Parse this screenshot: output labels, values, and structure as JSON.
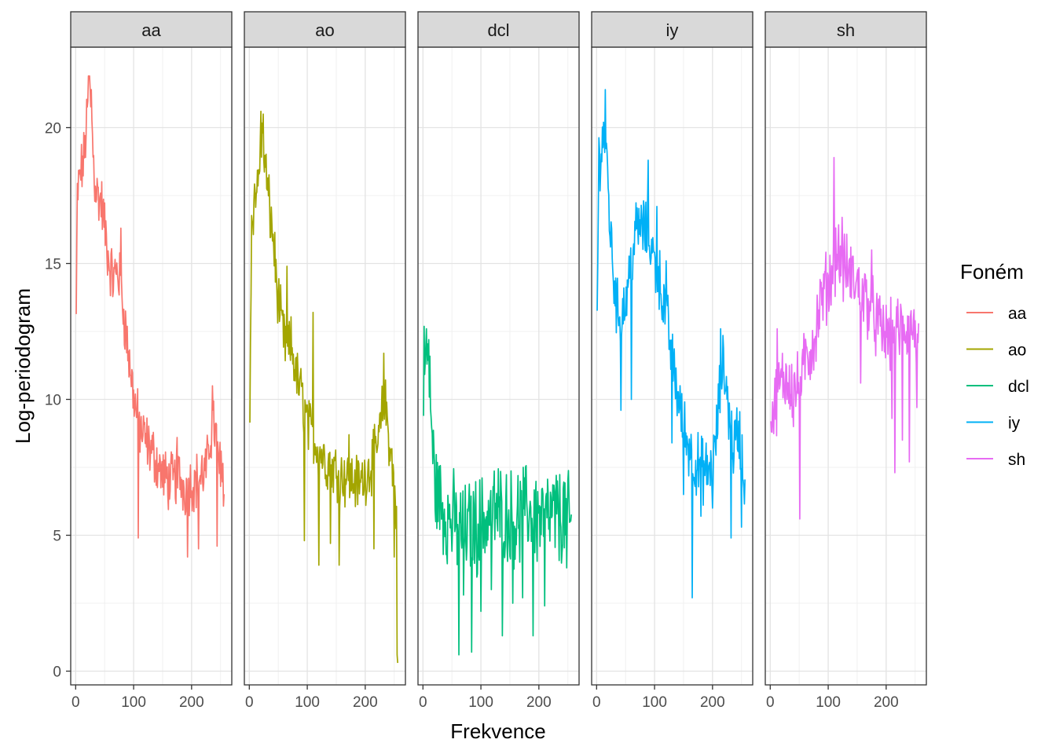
{
  "chart_data": {
    "type": "line",
    "facet_by": "phoneme",
    "facets": [
      "aa",
      "ao",
      "dcl",
      "iy",
      "sh"
    ],
    "xlabel": "Frekvence",
    "ylabel": "Log-periodogram",
    "xlim": [
      0,
      256
    ],
    "ylim": [
      0,
      22
    ],
    "x_ticks": [
      0,
      100,
      200
    ],
    "y_ticks": [
      0,
      5,
      10,
      15,
      20
    ],
    "grid": true,
    "legend": {
      "title": "Foném",
      "position": "right",
      "entries": [
        "aa",
        "ao",
        "dcl",
        "iy",
        "sh"
      ]
    },
    "colors": {
      "aa": "#F8766D",
      "ao": "#A3A500",
      "dcl": "#00BF7D",
      "iy": "#00B0F6",
      "sh": "#E76BF3"
    },
    "series": [
      {
        "name": "aa",
        "anchors": [
          [
            1,
            13.0
          ],
          [
            3,
            17.5
          ],
          [
            8,
            18.3
          ],
          [
            14,
            18.8
          ],
          [
            20,
            20.5
          ],
          [
            24,
            21.8
          ],
          [
            28,
            20.0
          ],
          [
            33,
            18.0
          ],
          [
            38,
            17.5
          ],
          [
            45,
            17.2
          ],
          [
            52,
            16.0
          ],
          [
            58,
            15.0
          ],
          [
            65,
            14.4
          ],
          [
            72,
            14.8
          ],
          [
            78,
            14.2
          ],
          [
            85,
            12.8
          ],
          [
            92,
            11.5
          ],
          [
            98,
            10.5
          ],
          [
            104,
            9.6
          ],
          [
            110,
            9.0
          ],
          [
            118,
            8.6
          ],
          [
            128,
            8.2
          ],
          [
            138,
            7.8
          ],
          [
            148,
            7.3
          ],
          [
            158,
            7.0
          ],
          [
            168,
            7.0
          ],
          [
            178,
            7.2
          ],
          [
            188,
            6.7
          ],
          [
            198,
            6.9
          ],
          [
            208,
            7.0
          ],
          [
            218,
            7.2
          ],
          [
            226,
            7.4
          ],
          [
            232,
            8.6
          ],
          [
            238,
            9.2
          ],
          [
            245,
            8.1
          ],
          [
            252,
            7.2
          ],
          [
            256,
            7.0
          ]
        ],
        "amp": 0.9,
        "spikes": [
          [
            22,
            21.9
          ],
          [
            27,
            21.4
          ],
          [
            78,
            16.3
          ],
          [
            108,
            4.9
          ],
          [
            175,
            8.6
          ],
          [
            193,
            4.2
          ],
          [
            212,
            4.5
          ],
          [
            236,
            10.5
          ],
          [
            244,
            4.6
          ],
          [
            250,
            6.8
          ]
        ]
      },
      {
        "name": "ao",
        "anchors": [
          [
            1,
            9.4
          ],
          [
            4,
            16.5
          ],
          [
            9,
            17.5
          ],
          [
            15,
            17.9
          ],
          [
            20,
            19.5
          ],
          [
            25,
            19.2
          ],
          [
            30,
            18.0
          ],
          [
            36,
            16.8
          ],
          [
            42,
            15.8
          ],
          [
            48,
            14.0
          ],
          [
            54,
            13.0
          ],
          [
            60,
            12.2
          ],
          [
            66,
            11.8
          ],
          [
            72,
            12.0
          ],
          [
            78,
            11.3
          ],
          [
            84,
            10.6
          ],
          [
            90,
            10.2
          ],
          [
            96,
            9.6
          ],
          [
            102,
            9.0
          ],
          [
            110,
            8.6
          ],
          [
            120,
            8.2
          ],
          [
            130,
            7.8
          ],
          [
            140,
            7.6
          ],
          [
            150,
            7.4
          ],
          [
            160,
            7.2
          ],
          [
            170,
            7.1
          ],
          [
            180,
            7.0
          ],
          [
            190,
            6.9
          ],
          [
            200,
            7.2
          ],
          [
            210,
            7.6
          ],
          [
            218,
            8.0
          ],
          [
            224,
            8.6
          ],
          [
            230,
            9.6
          ],
          [
            234,
            10.0
          ],
          [
            238,
            9.2
          ],
          [
            244,
            8.0
          ],
          [
            250,
            7.0
          ],
          [
            254,
            5.5
          ],
          [
            256,
            0.6
          ]
        ],
        "amp": 0.9,
        "spikes": [
          [
            20,
            20.6
          ],
          [
            24,
            20.5
          ],
          [
            48,
            13.7
          ],
          [
            65,
            14.9
          ],
          [
            95,
            4.8
          ],
          [
            110,
            13.2
          ],
          [
            120,
            3.9
          ],
          [
            140,
            4.7
          ],
          [
            155,
            3.9
          ],
          [
            172,
            8.7
          ],
          [
            215,
            4.5
          ],
          [
            232,
            11.7
          ],
          [
            250,
            4.2
          ],
          [
            255,
            0.6
          ]
        ]
      },
      {
        "name": "dcl",
        "anchors": [
          [
            1,
            10.8
          ],
          [
            4,
            11.5
          ],
          [
            8,
            11.3
          ],
          [
            12,
            10.5
          ],
          [
            16,
            8.5
          ],
          [
            20,
            7.0
          ],
          [
            26,
            6.5
          ],
          [
            34,
            6.0
          ],
          [
            44,
            5.6
          ],
          [
            54,
            5.5
          ],
          [
            64,
            5.2
          ],
          [
            74,
            5.1
          ],
          [
            84,
            5.4
          ],
          [
            94,
            5.3
          ],
          [
            104,
            5.6
          ],
          [
            114,
            5.6
          ],
          [
            124,
            5.9
          ],
          [
            134,
            5.8
          ],
          [
            144,
            5.7
          ],
          [
            154,
            5.6
          ],
          [
            164,
            5.6
          ],
          [
            174,
            5.8
          ],
          [
            184,
            5.9
          ],
          [
            194,
            5.7
          ],
          [
            204,
            5.6
          ],
          [
            214,
            5.6
          ],
          [
            224,
            5.7
          ],
          [
            234,
            5.6
          ],
          [
            244,
            5.7
          ],
          [
            252,
            5.5
          ],
          [
            256,
            5.4
          ]
        ],
        "amp": 1.5,
        "spikes": [
          [
            6,
            12.6
          ],
          [
            10,
            12.2
          ],
          [
            62,
            0.6
          ],
          [
            70,
            2.8
          ],
          [
            84,
            0.7
          ],
          [
            100,
            2.2
          ],
          [
            118,
            3.0
          ],
          [
            137,
            1.3
          ],
          [
            155,
            2.5
          ],
          [
            172,
            2.7
          ],
          [
            190,
            1.3
          ],
          [
            210,
            2.4
          ],
          [
            232,
            7.0
          ],
          [
            248,
            3.8
          ]
        ]
      },
      {
        "name": "iy",
        "anchors": [
          [
            1,
            13.2
          ],
          [
            4,
            18.8
          ],
          [
            8,
            19.3
          ],
          [
            12,
            19.6
          ],
          [
            16,
            19.3
          ],
          [
            20,
            17.8
          ],
          [
            24,
            16.0
          ],
          [
            30,
            14.5
          ],
          [
            36,
            13.2
          ],
          [
            44,
            13.2
          ],
          [
            52,
            13.8
          ],
          [
            60,
            15.2
          ],
          [
            68,
            16.2
          ],
          [
            76,
            16.4
          ],
          [
            84,
            16.2
          ],
          [
            92,
            15.9
          ],
          [
            100,
            15.0
          ],
          [
            108,
            14.5
          ],
          [
            116,
            13.5
          ],
          [
            124,
            12.5
          ],
          [
            132,
            11.2
          ],
          [
            140,
            10.2
          ],
          [
            148,
            9.2
          ],
          [
            156,
            8.5
          ],
          [
            164,
            8.0
          ],
          [
            172,
            7.6
          ],
          [
            180,
            7.5
          ],
          [
            188,
            7.3
          ],
          [
            196,
            7.4
          ],
          [
            204,
            8.0
          ],
          [
            210,
            9.5
          ],
          [
            214,
            10.8
          ],
          [
            218,
            11.2
          ],
          [
            224,
            10.5
          ],
          [
            230,
            9.2
          ],
          [
            236,
            8.2
          ],
          [
            242,
            8.8
          ],
          [
            248,
            8.6
          ],
          [
            252,
            7.6
          ],
          [
            256,
            6.4
          ]
        ],
        "amp": 1.0,
        "spikes": [
          [
            12,
            20.2
          ],
          [
            15,
            21.4
          ],
          [
            42,
            9.6
          ],
          [
            60,
            10.0
          ],
          [
            89,
            18.8
          ],
          [
            104,
            17.1
          ],
          [
            120,
            15.1
          ],
          [
            130,
            8.4
          ],
          [
            150,
            6.5
          ],
          [
            165,
            2.7
          ],
          [
            180,
            5.7
          ],
          [
            200,
            6.0
          ],
          [
            214,
            12.6
          ],
          [
            232,
            4.9
          ],
          [
            250,
            5.3
          ]
        ]
      },
      {
        "name": "sh",
        "anchors": [
          [
            1,
            9.8
          ],
          [
            6,
            9.5
          ],
          [
            12,
            10.2
          ],
          [
            18,
            10.5
          ],
          [
            24,
            10.8
          ],
          [
            30,
            10.8
          ],
          [
            36,
            10.6
          ],
          [
            42,
            10.4
          ],
          [
            48,
            10.4
          ],
          [
            54,
            10.8
          ],
          [
            60,
            11.3
          ],
          [
            66,
            11.6
          ],
          [
            72,
            12.0
          ],
          [
            78,
            12.4
          ],
          [
            84,
            13.2
          ],
          [
            90,
            13.8
          ],
          [
            96,
            14.1
          ],
          [
            102,
            14.3
          ],
          [
            108,
            14.8
          ],
          [
            114,
            15.5
          ],
          [
            120,
            15.2
          ],
          [
            126,
            14.8
          ],
          [
            132,
            14.8
          ],
          [
            138,
            14.6
          ],
          [
            144,
            14.4
          ],
          [
            150,
            14.2
          ],
          [
            156,
            14.0
          ],
          [
            162,
            13.8
          ],
          [
            168,
            13.6
          ],
          [
            174,
            13.3
          ],
          [
            180,
            13.0
          ],
          [
            186,
            12.7
          ],
          [
            192,
            12.5
          ],
          [
            198,
            12.4
          ],
          [
            204,
            12.3
          ],
          [
            210,
            12.3
          ],
          [
            216,
            12.4
          ],
          [
            222,
            12.5
          ],
          [
            228,
            12.6
          ],
          [
            234,
            12.6
          ],
          [
            240,
            12.6
          ],
          [
            246,
            12.6
          ],
          [
            252,
            12.4
          ],
          [
            256,
            11.5
          ]
        ],
        "amp": 1.1,
        "spikes": [
          [
            12,
            12.6
          ],
          [
            40,
            9.0
          ],
          [
            51,
            5.6
          ],
          [
            64,
            11.7
          ],
          [
            90,
            14.1
          ],
          [
            110,
            18.9
          ],
          [
            124,
            16.7
          ],
          [
            156,
            10.6
          ],
          [
            175,
            15.5
          ],
          [
            210,
            9.3
          ],
          [
            215,
            7.3
          ],
          [
            228,
            8.5
          ],
          [
            240,
            7.7
          ],
          [
            253,
            9.7
          ],
          [
            256,
            12.8
          ]
        ]
      }
    ]
  }
}
